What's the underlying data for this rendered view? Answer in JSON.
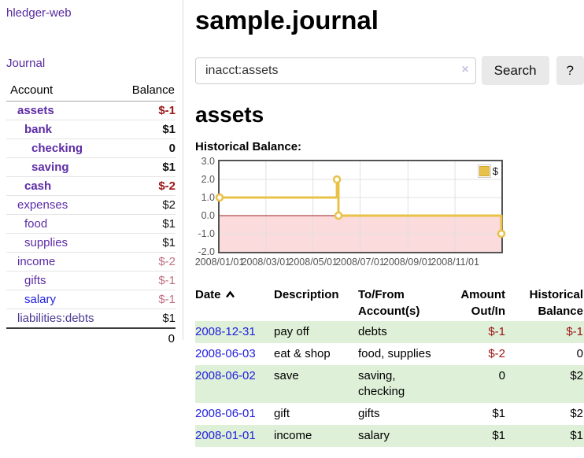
{
  "sidebar": {
    "brand": "hledger-web",
    "nav": {
      "journal": "Journal"
    },
    "accounts": {
      "header": {
        "account": "Account",
        "balance": "Balance"
      },
      "rows": [
        {
          "name": "assets",
          "balance": "$-1",
          "indent": 1,
          "bold": true,
          "balance_style": "neg-strong"
        },
        {
          "name": "bank",
          "balance": "$1",
          "indent": 2,
          "bold": true,
          "balance_style": "pos"
        },
        {
          "name": "checking",
          "balance": "0",
          "indent": 3,
          "bold": true,
          "balance_style": "pos"
        },
        {
          "name": "saving",
          "balance": "$1",
          "indent": 3,
          "bold": true,
          "balance_style": "pos"
        },
        {
          "name": "cash",
          "balance": "$-2",
          "indent": 2,
          "bold": true,
          "balance_style": "neg-strong"
        },
        {
          "name": "expenses",
          "balance": "$2",
          "indent": 1,
          "bold": false,
          "balance_style": "pos"
        },
        {
          "name": "food",
          "balance": "$1",
          "indent": 2,
          "bold": false,
          "balance_style": "pos"
        },
        {
          "name": "supplies",
          "balance": "$1",
          "indent": 2,
          "bold": false,
          "balance_style": "pos"
        },
        {
          "name": "income",
          "balance": "$-2",
          "indent": 1,
          "bold": false,
          "balance_style": "neg-muted"
        },
        {
          "name": "gifts",
          "balance": "$-1",
          "indent": 2,
          "bold": false,
          "balance_style": "neg-muted"
        },
        {
          "name": "salary",
          "balance": "$-1",
          "indent": 2,
          "bold": false,
          "balance_style": "neg-muted",
          "link_style": "blue"
        },
        {
          "name": "liabilities:debts",
          "balance": "$1",
          "indent": 1,
          "bold": false,
          "balance_style": "pos",
          "link_style": "dark"
        }
      ],
      "total": "0"
    }
  },
  "main": {
    "title": "sample.journal",
    "search": {
      "value": "inacct:assets",
      "clear_icon": "×",
      "search_button": "Search",
      "help_button": "?"
    },
    "account_heading": "assets",
    "chart_heading": "Historical Balance:"
  },
  "chart_data": {
    "type": "line",
    "title": "Historical Balance:",
    "series": [
      {
        "name": "$",
        "color": "#e9c248",
        "steps": true,
        "points": [
          [
            "2008-01-01",
            1
          ],
          [
            "2008-06-01",
            2
          ],
          [
            "2008-06-03",
            0
          ],
          [
            "2008-12-31",
            -1
          ]
        ]
      }
    ],
    "xlim": [
      "2008-01-01",
      "2008-12-31"
    ],
    "ylim": [
      -2,
      3
    ],
    "x_ticks": [
      "2008/01/01",
      "2008/03/01",
      "2008/05/01",
      "2008/07/01",
      "2008/09/01",
      "2008/11/01"
    ],
    "y_ticks": [
      3.0,
      2.0,
      1.0,
      0.0,
      -1.0,
      -2.0
    ],
    "grid": true,
    "legend_position": "top-right",
    "negative_region_color": "#fbdbdb",
    "zero_line_color": "#992222",
    "grid_color": "#e0e0e0"
  },
  "register": {
    "headers": {
      "date": "Date",
      "description": "Description",
      "accounts": "To/From Account(s)",
      "amount": "Amount Out/In",
      "balance": "Historical Balance"
    },
    "rows": [
      {
        "date": "2008-12-31",
        "description": "pay off",
        "accounts": "debts",
        "amount": "$-1",
        "amount_neg": true,
        "balance": "$-1",
        "balance_neg": true
      },
      {
        "date": "2008-06-03",
        "description": "eat & shop",
        "accounts": "food, supplies",
        "amount": "$-2",
        "amount_neg": true,
        "balance": "0",
        "balance_neg": false
      },
      {
        "date": "2008-06-02",
        "description": "save",
        "accounts": "saving, checking",
        "amount": "0",
        "amount_neg": false,
        "balance": "$2",
        "balance_neg": false
      },
      {
        "date": "2008-06-01",
        "description": "gift",
        "accounts": "gifts",
        "amount": "$1",
        "amount_neg": false,
        "balance": "$2",
        "balance_neg": false
      },
      {
        "date": "2008-01-01",
        "description": "income",
        "accounts": "salary",
        "amount": "$1",
        "amount_neg": false,
        "balance": "$1",
        "balance_neg": false
      }
    ]
  },
  "colors": {
    "brand_purple": "#56299e",
    "account_link_purple": "#5d2ca6",
    "date_link_blue": "#2121dd",
    "negative_strong": "#9b1414",
    "negative_muted": "#c0707e",
    "row_stripe_green": "#dff0d8",
    "chart_line_yellow": "#e9c248",
    "chart_border_gray": "#545454"
  }
}
